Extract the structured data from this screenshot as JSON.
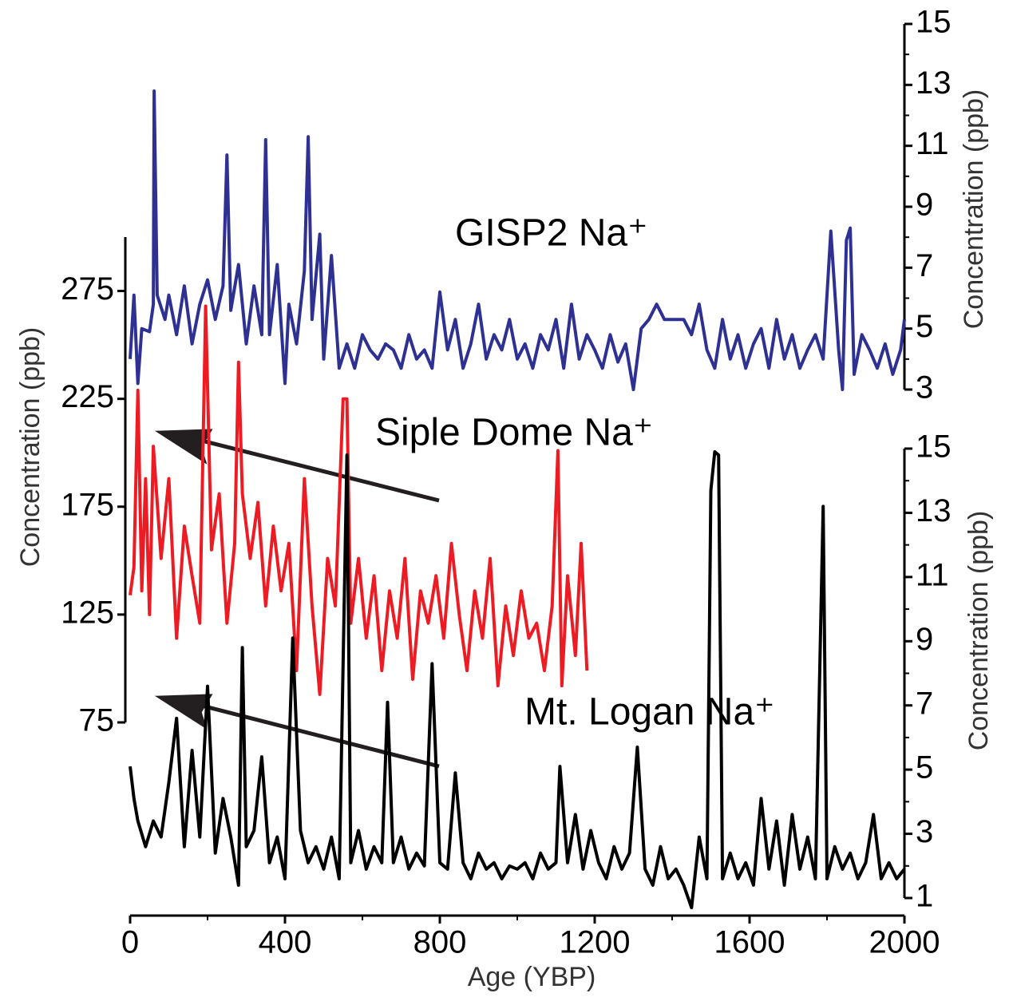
{
  "chart_data": {
    "type": "line",
    "xlabel": "Age (YBP)",
    "xlim": [
      0,
      2000
    ],
    "xticks": [
      0,
      400,
      800,
      1200,
      1600,
      2000
    ],
    "xminor_ticks": [
      200,
      600,
      1000,
      1400,
      1800
    ],
    "axes": {
      "y": {
        "label": "Concentration (ppb)",
        "ylim": [
          75,
          300
        ],
        "yticks": [
          75,
          125,
          175,
          225,
          275
        ]
      },
      "y2": {
        "label": "Concentration (ppb)",
        "ylim": [
          3,
          15
        ],
        "yticks": [
          3,
          5,
          7,
          9,
          11,
          13,
          15
        ],
        "minor_ticks": [
          4,
          6,
          8,
          10,
          12,
          14
        ]
      },
      "y3": {
        "label": "Concentration (ppb)",
        "ylim": [
          1,
          15
        ],
        "yticks": [
          1,
          3,
          5,
          7,
          9,
          11,
          13,
          15
        ],
        "minor_ticks": [
          2,
          4,
          6,
          8,
          10,
          12,
          14
        ]
      }
    },
    "series": [
      {
        "name": "GISP2 Na⁺",
        "color": "#2e3192",
        "axis": "y2",
        "x": [
          0,
          10,
          20,
          30,
          50,
          60,
          62,
          70,
          90,
          100,
          120,
          140,
          160,
          180,
          200,
          220,
          240,
          250,
          260,
          280,
          300,
          320,
          340,
          350,
          360,
          380,
          400,
          410,
          430,
          450,
          460,
          470,
          490,
          500,
          520,
          540,
          560,
          580,
          600,
          620,
          640,
          660,
          680,
          700,
          720,
          740,
          760,
          780,
          800,
          820,
          840,
          860,
          880,
          900,
          920,
          940,
          960,
          980,
          1000,
          1020,
          1040,
          1060,
          1080,
          1100,
          1120,
          1140,
          1160,
          1180,
          1200,
          1220,
          1240,
          1260,
          1280,
          1300,
          1320,
          1340,
          1360,
          1380,
          1430,
          1450,
          1470,
          1490,
          1510,
          1530,
          1550,
          1570,
          1590,
          1610,
          1630,
          1650,
          1670,
          1690,
          1710,
          1730,
          1750,
          1770,
          1790,
          1810,
          1830,
          1840,
          1850,
          1860,
          1870,
          1890,
          1910,
          1930,
          1950,
          1970,
          1990,
          2000
        ],
        "values": [
          4.0,
          6.1,
          3.2,
          5.0,
          4.9,
          5.8,
          12.8,
          6.1,
          5.3,
          6.1,
          4.8,
          6.4,
          4.5,
          5.8,
          6.6,
          5.3,
          6.4,
          10.7,
          5.6,
          7.1,
          4.5,
          6.4,
          4.8,
          11.2,
          4.8,
          7.1,
          3.2,
          5.8,
          4.5,
          6.9,
          11.3,
          5.3,
          8.1,
          4.0,
          7.4,
          3.7,
          4.5,
          3.7,
          4.8,
          4.3,
          4.0,
          4.5,
          4.3,
          3.7,
          4.8,
          4.0,
          4.3,
          3.7,
          6.2,
          4.3,
          5.3,
          3.7,
          4.5,
          5.8,
          4.0,
          4.8,
          4.3,
          5.3,
          4.0,
          4.5,
          3.7,
          4.8,
          4.3,
          5.3,
          3.7,
          5.8,
          4.0,
          4.8,
          4.3,
          3.7,
          4.8,
          3.9,
          4.5,
          3.0,
          5.0,
          5.3,
          5.8,
          5.3,
          5.3,
          4.8,
          5.8,
          4.3,
          3.7,
          5.3,
          4.0,
          4.8,
          3.7,
          4.5,
          5.0,
          3.7,
          5.3,
          4.0,
          4.8,
          3.7,
          4.3,
          4.8,
          4.0,
          8.2,
          4.3,
          3.0,
          7.9,
          8.3,
          3.5,
          4.8,
          4.3,
          3.7,
          4.5,
          3.5,
          4.3,
          5.3
        ]
      },
      {
        "name": "Siple Dome Na⁺",
        "color": "#ed1c24",
        "axis": "y",
        "x": [
          0,
          10,
          20,
          30,
          40,
          50,
          60,
          80,
          100,
          120,
          140,
          160,
          180,
          195,
          210,
          230,
          250,
          270,
          280,
          290,
          310,
          330,
          350,
          370,
          390,
          410,
          430,
          450,
          470,
          490,
          510,
          530,
          550,
          560,
          570,
          590,
          610,
          630,
          650,
          670,
          690,
          710,
          730,
          750,
          770,
          790,
          810,
          830,
          850,
          870,
          890,
          910,
          930,
          950,
          970,
          990,
          1010,
          1030,
          1050,
          1070,
          1090,
          1105,
          1115,
          1130,
          1150,
          1165,
          1180
        ],
        "values": [
          134,
          147,
          229,
          136,
          188,
          125,
          203,
          151,
          188,
          114,
          166,
          143,
          121,
          268,
          155,
          181,
          121,
          158,
          242,
          181,
          151,
          177,
          129,
          166,
          136,
          158,
          99,
          188,
          129,
          88,
          151,
          129,
          225,
          225,
          121,
          151,
          114,
          143,
          99,
          136,
          114,
          151,
          95,
          136,
          121,
          143,
          114,
          158,
          125,
          99,
          136,
          114,
          151,
          92,
          129,
          106,
          136,
          114,
          121,
          99,
          129,
          201,
          92,
          143,
          106,
          158,
          99
        ]
      },
      {
        "name": "Mt. Logan Na⁺",
        "color": "#000000",
        "axis": "y3",
        "x": [
          0,
          10,
          20,
          40,
          60,
          80,
          100,
          120,
          140,
          160,
          180,
          200,
          220,
          240,
          260,
          280,
          290,
          300,
          320,
          340,
          360,
          380,
          400,
          420,
          440,
          460,
          480,
          500,
          520,
          540,
          560,
          570,
          590,
          610,
          630,
          650,
          665,
          680,
          700,
          720,
          740,
          760,
          780,
          800,
          820,
          840,
          860,
          880,
          900,
          920,
          940,
          960,
          980,
          1000,
          1020,
          1040,
          1060,
          1080,
          1100,
          1110,
          1130,
          1150,
          1170,
          1190,
          1210,
          1230,
          1250,
          1270,
          1290,
          1310,
          1330,
          1350,
          1370,
          1390,
          1410,
          1430,
          1450,
          1470,
          1490,
          1500,
          1510,
          1520,
          1530,
          1550,
          1570,
          1590,
          1610,
          1630,
          1650,
          1670,
          1690,
          1710,
          1730,
          1750,
          1770,
          1790,
          1800,
          1820,
          1840,
          1860,
          1880,
          1900,
          1920,
          1940,
          1960,
          1980,
          2000
        ],
        "values": [
          5.1,
          4.1,
          3.4,
          2.6,
          3.4,
          2.9,
          4.6,
          6.6,
          2.6,
          5.6,
          2.9,
          7.6,
          2.4,
          4.1,
          2.9,
          1.4,
          8.8,
          2.6,
          3.1,
          5.4,
          2.1,
          2.9,
          1.6,
          9.1,
          3.1,
          2.1,
          2.6,
          1.9,
          2.9,
          1.6,
          14.8,
          2.1,
          3.1,
          1.9,
          2.6,
          2.1,
          7.1,
          2.1,
          2.9,
          1.9,
          2.4,
          2.0,
          8.3,
          2.1,
          1.9,
          4.9,
          2.1,
          1.6,
          2.4,
          1.9,
          2.1,
          1.6,
          2.0,
          1.9,
          2.1,
          1.6,
          2.4,
          1.9,
          2.1,
          5.1,
          2.1,
          3.6,
          1.9,
          3.1,
          2.1,
          1.6,
          2.6,
          1.9,
          2.4,
          5.7,
          1.9,
          1.4,
          2.6,
          1.6,
          1.9,
          1.4,
          0.7,
          2.9,
          1.6,
          13.7,
          14.9,
          14.8,
          1.6,
          2.4,
          1.6,
          2.1,
          1.4,
          4.1,
          1.9,
          3.4,
          1.4,
          3.6,
          1.9,
          2.9,
          1.6,
          13.2,
          1.6,
          2.6,
          1.9,
          2.4,
          1.6,
          2.1,
          3.6,
          1.6,
          2.1,
          1.6,
          1.9
        ]
      }
    ]
  }
}
